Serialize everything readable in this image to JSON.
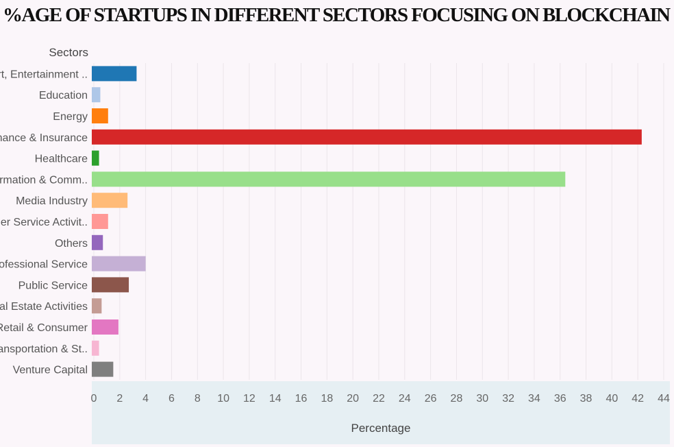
{
  "chart_data": {
    "type": "bar",
    "orientation": "horizontal",
    "title": "%AGE OF STARTUPS IN DIFFERENT SECTORS FOCUSING ON BLOCKCHAIN",
    "ylabel": "Sectors",
    "xlabel": "Percentage",
    "xlim": [
      0,
      44
    ],
    "xticks": [
      0,
      2,
      4,
      6,
      8,
      10,
      12,
      14,
      16,
      18,
      20,
      22,
      24,
      26,
      28,
      30,
      32,
      34,
      36,
      38,
      40,
      42,
      44
    ],
    "grid": true,
    "categories": [
      "Art, Entertainment ..",
      "Education",
      "Energy",
      "Finance & Insurance",
      "Healthcare",
      "Information & Comm..",
      "Media Industry",
      "Other Service Activit..",
      "Others",
      "Professional Service",
      "Public Service",
      "Real Estate Activities",
      "Retail & Consumer",
      "Transportation & St..",
      "Venture Capital"
    ],
    "values": [
      3.3,
      0.5,
      1.1,
      42.3,
      0.4,
      36.4,
      2.6,
      1.1,
      0.7,
      4.0,
      2.7,
      0.6,
      1.9,
      0.4,
      1.5
    ],
    "colors": [
      "#1f77b4",
      "#aec7e8",
      "#ff7f0e",
      "#d62728",
      "#2ca02c",
      "#98df8a",
      "#ffbb78",
      "#ff9896",
      "#9467bd",
      "#c5b0d5",
      "#8c564b",
      "#c49c94",
      "#e377c2",
      "#f7b6d2",
      "#7f7f7f"
    ]
  }
}
